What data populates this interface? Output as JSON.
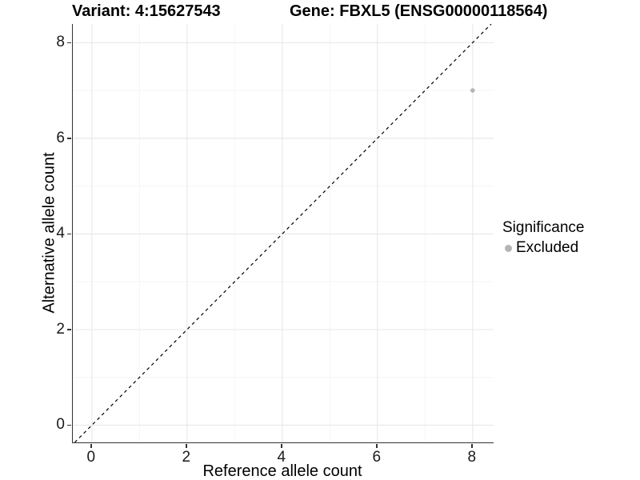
{
  "title": {
    "variant": "Variant: 4:15627543",
    "gene": "Gene: FBXL5 (ENSG00000118564)"
  },
  "legend": {
    "title": "Significance",
    "items": [
      {
        "label": "Excluded",
        "color": "#b4b4b4"
      }
    ]
  },
  "chart_data": {
    "type": "scatter",
    "title": "Variant: 4:15627543   Gene: FBXL5 (ENSG00000118564)",
    "xlabel": "Reference allele count",
    "ylabel": "Alternative allele count",
    "xlim": [
      -0.4,
      8.44
    ],
    "ylim": [
      -0.36,
      8.39
    ],
    "x_ticks": [
      0,
      2,
      4,
      6,
      8
    ],
    "y_ticks": [
      0,
      2,
      4,
      6,
      8
    ],
    "x_minor": [
      1,
      3,
      5,
      7
    ],
    "y_minor": [
      1,
      3,
      5,
      7
    ],
    "grid": true,
    "legend_position": "right",
    "series": [
      {
        "name": "Excluded",
        "color": "#b4b4b4",
        "points": [
          {
            "x": 8,
            "y": 7
          }
        ]
      }
    ],
    "reference_line": {
      "type": "abline",
      "slope": 1,
      "intercept": 0,
      "style": "dashed",
      "color": "#000000"
    },
    "colors": {
      "grid_major": "#e9e9e9",
      "grid_minor": "#f5f5f5",
      "axis_line": "#333333",
      "point": "#b4b4b4"
    }
  }
}
